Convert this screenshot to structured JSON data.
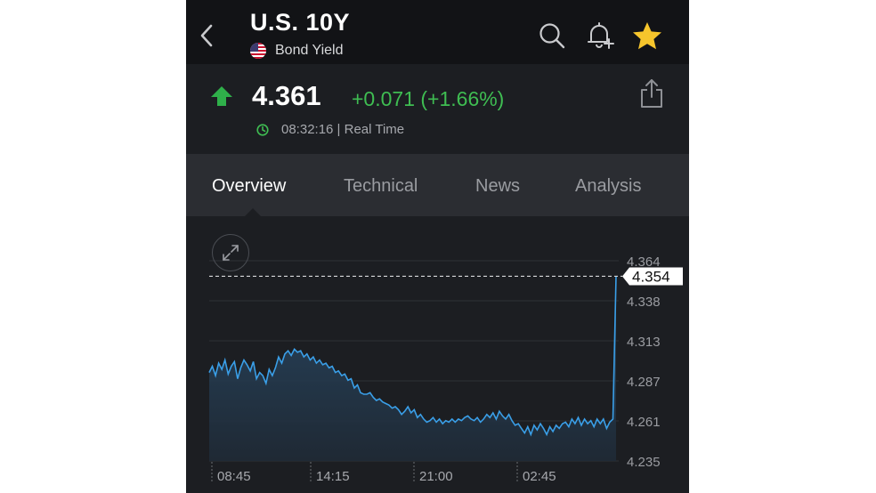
{
  "header": {
    "title": "U.S. 10Y",
    "subtitle": "Bond Yield",
    "icons": [
      "back-chevron-icon",
      "us-flag-icon",
      "search-icon",
      "bell-plus-icon",
      "star-icon"
    ],
    "star_color": "#f6c52c"
  },
  "quote": {
    "price": "4.361",
    "change": "+0.071 (+1.66%)",
    "time": "08:32:16 | Real Time",
    "up_color": "#3fbd52"
  },
  "tabs": [
    {
      "label": "Overview",
      "active": true
    },
    {
      "label": "Technical",
      "active": false
    },
    {
      "label": "News",
      "active": false
    },
    {
      "label": "Analysis",
      "active": false
    }
  ],
  "chart_data": {
    "type": "area",
    "current_value_label": "4.354",
    "y_ticks": [
      "4.364",
      "4.338",
      "4.313",
      "4.287",
      "4.261",
      "4.235"
    ],
    "x_ticks": [
      "08:45",
      "14:15",
      "21:00",
      "02:45"
    ],
    "ylim": [
      4.235,
      4.364
    ],
    "current_value": 4.354,
    "line_color": "#3a9fe8",
    "grid": true,
    "series": [
      {
        "values": [
          4.292,
          4.296,
          4.29,
          4.298,
          4.294,
          4.3,
          4.291,
          4.296,
          4.299,
          4.288,
          4.295,
          4.3,
          4.297,
          4.293,
          4.299,
          4.288,
          4.292,
          4.29,
          4.285,
          4.294,
          4.29,
          4.295,
          4.302,
          4.298,
          4.304,
          4.306,
          4.303,
          4.307,
          4.305,
          4.306,
          4.302,
          4.304,
          4.3,
          4.302,
          4.298,
          4.3,
          4.297,
          4.298,
          4.295,
          4.296,
          4.292,
          4.293,
          4.29,
          4.291,
          4.287,
          4.288,
          4.282,
          4.284,
          4.279,
          4.278,
          4.278,
          4.279,
          4.276,
          4.274,
          4.275,
          4.273,
          4.272,
          4.271,
          4.269,
          4.27,
          4.268,
          4.265,
          4.267,
          4.27,
          4.266,
          4.268,
          4.263,
          4.265,
          4.262,
          4.26,
          4.261,
          4.263,
          4.26,
          4.262,
          4.259,
          4.261,
          4.26,
          4.262,
          4.26,
          4.262,
          4.261,
          4.263,
          4.264,
          4.262,
          4.261,
          4.263,
          4.26,
          4.262,
          4.265,
          4.263,
          4.266,
          4.262,
          4.267,
          4.264,
          4.262,
          4.265,
          4.261,
          4.258,
          4.259,
          4.256,
          4.253,
          4.257,
          4.252,
          4.258,
          4.255,
          4.259,
          4.256,
          4.252,
          4.257,
          4.254,
          4.258,
          4.256,
          4.259,
          4.26,
          4.257,
          4.262,
          4.259,
          4.263,
          4.258,
          4.262,
          4.259,
          4.261,
          4.257,
          4.262,
          4.259,
          4.262,
          4.256,
          4.26,
          4.262,
          4.354
        ]
      }
    ]
  }
}
